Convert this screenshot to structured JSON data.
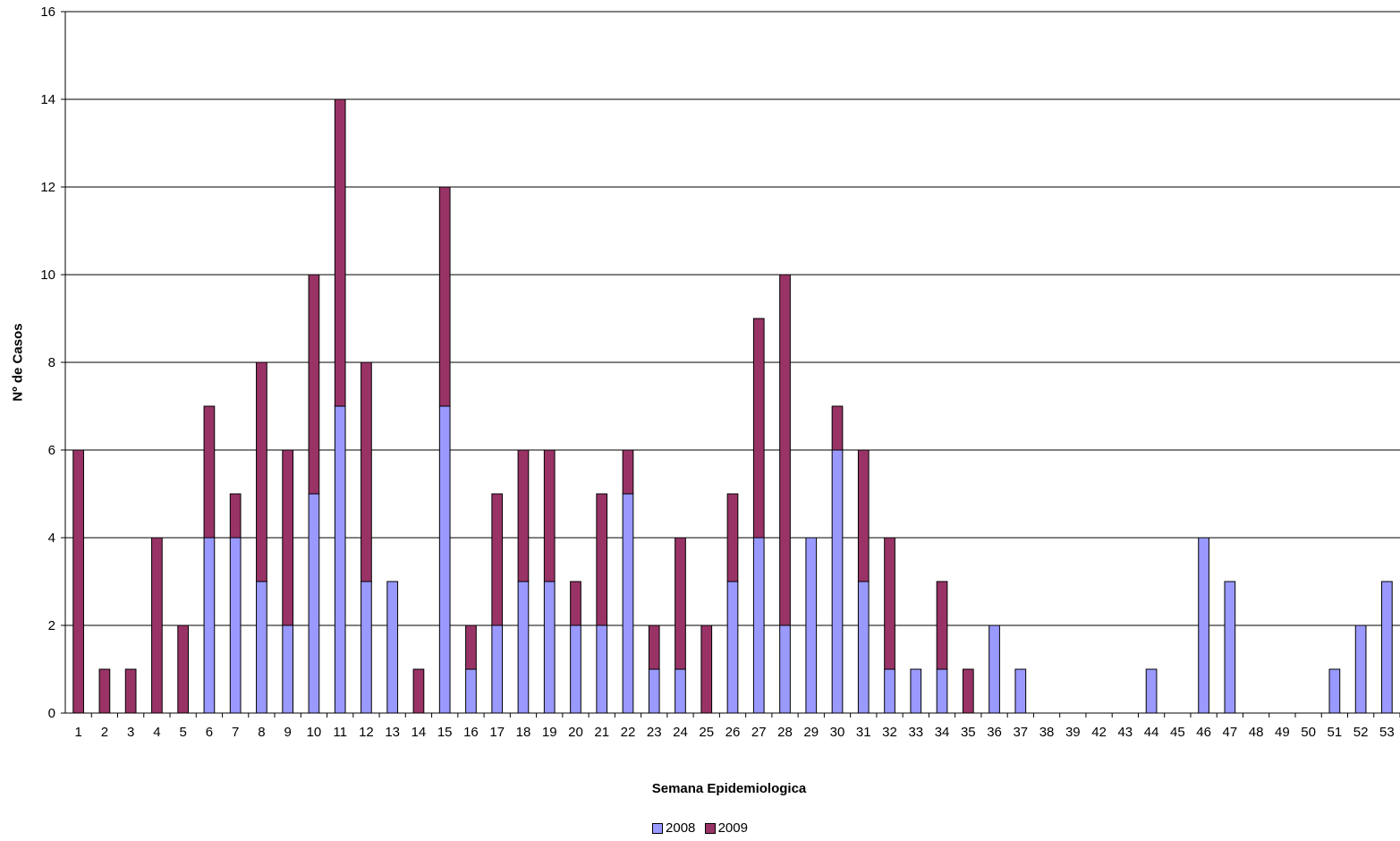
{
  "chart_data": {
    "type": "bar",
    "stacked": true,
    "xlabel": "Semana Epidemiologica",
    "ylabel": "Nº de Casos",
    "ylim": [
      0,
      16
    ],
    "yticks": [
      0,
      2,
      4,
      6,
      8,
      10,
      12,
      14,
      16
    ],
    "grid": true,
    "legend_position": "bottom",
    "categories": [
      "1",
      "2",
      "3",
      "4",
      "5",
      "6",
      "7",
      "8",
      "9",
      "10",
      "11",
      "12",
      "13",
      "14",
      "15",
      "16",
      "17",
      "18",
      "19",
      "20",
      "21",
      "22",
      "23",
      "24",
      "25",
      "26",
      "27",
      "28",
      "29",
      "30",
      "31",
      "32",
      "33",
      "34",
      "35",
      "36",
      "37",
      "38",
      "39",
      "42",
      "43",
      "44",
      "45",
      "46",
      "47",
      "48",
      "49",
      "50",
      "51",
      "52",
      "53"
    ],
    "series": [
      {
        "name": "2008",
        "color": "#9999ff",
        "values": [
          0,
          0,
          0,
          0,
          0,
          4,
          4,
          3,
          2,
          5,
          7,
          3,
          3,
          0,
          7,
          1,
          2,
          3,
          3,
          2,
          2,
          5,
          1,
          1,
          0,
          3,
          4,
          2,
          4,
          6,
          3,
          1,
          1,
          1,
          0,
          2,
          1,
          0,
          0,
          0,
          0,
          1,
          0,
          4,
          3,
          0,
          0,
          0,
          1,
          2,
          3
        ]
      },
      {
        "name": "2009",
        "color": "#993366",
        "values": [
          6,
          1,
          1,
          4,
          2,
          3,
          1,
          5,
          4,
          5,
          7,
          5,
          0,
          1,
          5,
          1,
          3,
          3,
          3,
          1,
          3,
          1,
          1,
          3,
          2,
          2,
          5,
          8,
          0,
          1,
          3,
          3,
          0,
          2,
          1,
          0,
          0,
          0,
          0,
          0,
          0,
          0,
          0,
          0,
          0,
          0,
          0,
          0,
          0,
          0,
          0
        ]
      }
    ]
  }
}
